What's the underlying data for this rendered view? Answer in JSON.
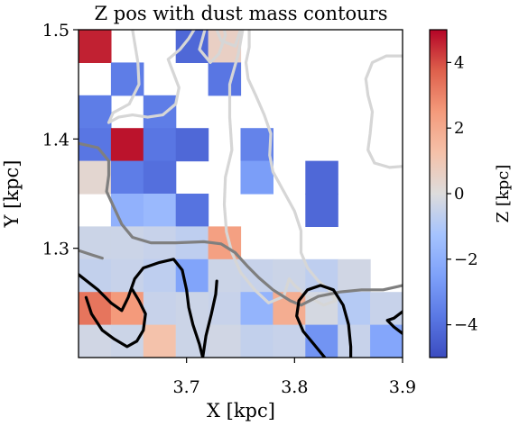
{
  "chart_data": {
    "type": "heatmap",
    "title": "Z pos with dust mass contours",
    "xlabel": "X [kpc]",
    "ylabel": "Y [kpc]",
    "colorbar_label": "Z [kpc]",
    "colormap": "coolwarm",
    "vmin": -5,
    "vmax": 5,
    "xlim": [
      3.6,
      3.9
    ],
    "ylim": [
      1.2,
      1.5
    ],
    "xticks": [
      3.7,
      3.8,
      3.9
    ],
    "xtick_labels": [
      "3.7",
      "3.8",
      "3.9"
    ],
    "yticks": [
      1.3,
      1.4,
      1.5
    ],
    "ytick_labels": [
      "1.3",
      "1.4",
      "1.5"
    ],
    "cbar_ticks": [
      4,
      2,
      0,
      -2,
      -4
    ],
    "cbar_tick_labels": [
      "4",
      "2",
      "0",
      "−2",
      "−4"
    ],
    "cell_size": 0.03,
    "x_start": 3.6,
    "y_start": 1.2,
    "grid_rows_top_to_bottom": [
      [
        4.6,
        null,
        null,
        -4.2,
        0.6,
        null,
        null,
        null,
        null,
        null
      ],
      [
        null,
        -3.6,
        null,
        null,
        -3.8,
        null,
        null,
        null,
        null,
        null
      ],
      [
        -3.6,
        null,
        -3.6,
        null,
        null,
        null,
        null,
        null,
        null,
        null
      ],
      [
        -3.8,
        4.8,
        -3.8,
        -4.2,
        null,
        -3.4,
        null,
        null,
        null,
        null
      ],
      [
        0.3,
        -3.6,
        -4.0,
        null,
        null,
        -2.6,
        null,
        -4.2,
        null,
        null
      ],
      [
        null,
        -1.9,
        -1.6,
        -3.9,
        null,
        null,
        null,
        -4.2,
        null,
        null
      ],
      [
        -0.4,
        -0.4,
        -0.5,
        -0.7,
        2.3,
        null,
        null,
        null,
        null,
        null
      ],
      [
        -0.6,
        -0.5,
        -0.7,
        -2.4,
        -0.4,
        -0.5,
        -0.4,
        -0.7,
        -0.3,
        null
      ],
      [
        3.3,
        2.5,
        -0.5,
        -0.4,
        -0.5,
        -1.8,
        1.9,
        -0.2,
        -0.9,
        -0.5
      ],
      [
        -0.3,
        -0.4,
        1.2,
        -0.4,
        -0.3,
        -0.6,
        -0.5,
        -2.9,
        -0.5,
        -2.3
      ]
    ],
    "contours": [
      {
        "color": "#d6d6d6",
        "points": [
          [
            3.717,
            1.5
          ],
          [
            3.712,
            1.482
          ],
          [
            3.722,
            1.47
          ],
          [
            3.73,
            1.478
          ],
          [
            3.736,
            1.495
          ],
          [
            3.735,
            1.5
          ]
        ]
      },
      {
        "color": "#d6d6d6",
        "points": [
          [
            3.728,
            1.5
          ],
          [
            3.732,
            1.49
          ],
          [
            3.745,
            1.485
          ],
          [
            3.75,
            1.5
          ]
        ]
      },
      {
        "color": "#d6d6d6",
        "points": [
          [
            3.65,
            1.5
          ],
          [
            3.655,
            1.47
          ],
          [
            3.656,
            1.45
          ],
          [
            3.647,
            1.432
          ],
          [
            3.632,
            1.424
          ],
          [
            3.628,
            1.415
          ],
          [
            3.637,
            1.42
          ],
          [
            3.65,
            1.422
          ],
          [
            3.664,
            1.42
          ],
          [
            3.678,
            1.422
          ],
          [
            3.69,
            1.432
          ],
          [
            3.693,
            1.447
          ],
          [
            3.688,
            1.46
          ],
          [
            3.683,
            1.473
          ],
          [
            3.694,
            1.482
          ],
          [
            3.702,
            1.492
          ],
          [
            3.707,
            1.5
          ]
        ]
      },
      {
        "color": "#d6d6d6",
        "points": [
          [
            3.758,
            1.5
          ],
          [
            3.758,
            1.484
          ],
          [
            3.755,
            1.47
          ],
          [
            3.757,
            1.455
          ],
          [
            3.764,
            1.44
          ],
          [
            3.772,
            1.422
          ],
          [
            3.778,
            1.405
          ],
          [
            3.777,
            1.385
          ],
          [
            3.78,
            1.37
          ],
          [
            3.79,
            1.352
          ],
          [
            3.8,
            1.334
          ],
          [
            3.806,
            1.316
          ],
          [
            3.806,
            1.296
          ],
          [
            3.812,
            1.282
          ],
          [
            3.822,
            1.27
          ],
          [
            3.832,
            1.262
          ],
          [
            3.838,
            1.252
          ],
          [
            3.827,
            1.248
          ],
          [
            3.812,
            1.256
          ],
          [
            3.8,
            1.266
          ],
          [
            3.795,
            1.272
          ],
          [
            3.79,
            1.256
          ],
          [
            3.776,
            1.25
          ],
          [
            3.763,
            1.262
          ],
          [
            3.75,
            1.278
          ],
          [
            3.742,
            1.296
          ],
          [
            3.737,
            1.315
          ],
          [
            3.735,
            1.34
          ],
          [
            3.736,
            1.365
          ],
          [
            3.742,
            1.39
          ],
          [
            3.74,
            1.42
          ],
          [
            3.74,
            1.45
          ],
          [
            3.748,
            1.478
          ],
          [
            3.752,
            1.5
          ]
        ]
      },
      {
        "color": "#d6d6d6",
        "points": [
          [
            3.9,
            1.476
          ],
          [
            3.885,
            1.476
          ],
          [
            3.872,
            1.47
          ],
          [
            3.866,
            1.455
          ],
          [
            3.868,
            1.44
          ],
          [
            3.872,
            1.425
          ],
          [
            3.87,
            1.405
          ],
          [
            3.868,
            1.39
          ],
          [
            3.874,
            1.378
          ],
          [
            3.888,
            1.374
          ],
          [
            3.9,
            1.375
          ]
        ]
      },
      {
        "color": "#7f7f7f",
        "points": [
          [
            3.6,
            1.396
          ],
          [
            3.618,
            1.392
          ],
          [
            3.628,
            1.38
          ],
          [
            3.628,
            1.367
          ],
          [
            3.626,
            1.352
          ],
          [
            3.633,
            1.337
          ],
          [
            3.64,
            1.322
          ],
          [
            3.65,
            1.31
          ],
          [
            3.667,
            1.305
          ],
          [
            3.69,
            1.305
          ],
          [
            3.716,
            1.306
          ],
          [
            3.732,
            1.304
          ],
          [
            3.745,
            1.296
          ],
          [
            3.756,
            1.284
          ],
          [
            3.767,
            1.273
          ],
          [
            3.78,
            1.262
          ],
          [
            3.796,
            1.252
          ],
          [
            3.806,
            1.248
          ],
          [
            3.822,
            1.256
          ],
          [
            3.842,
            1.26
          ],
          [
            3.862,
            1.262
          ],
          [
            3.882,
            1.262
          ],
          [
            3.896,
            1.265
          ],
          [
            3.9,
            1.266
          ]
        ]
      },
      {
        "color": "#7f7f7f",
        "points": [
          [
            3.6,
            1.298
          ],
          [
            3.612,
            1.294
          ],
          [
            3.622,
            1.291
          ]
        ]
      },
      {
        "color": "#000000",
        "points": [
          [
            3.6,
            1.276
          ],
          [
            3.618,
            1.262
          ],
          [
            3.63,
            1.25
          ],
          [
            3.64,
            1.243
          ],
          [
            3.646,
            1.255
          ],
          [
            3.652,
            1.272
          ],
          [
            3.66,
            1.282
          ],
          [
            3.675,
            1.287
          ],
          [
            3.688,
            1.29
          ],
          [
            3.696,
            1.28
          ],
          [
            3.7,
            1.262
          ],
          [
            3.702,
            1.246
          ],
          [
            3.706,
            1.23
          ],
          [
            3.712,
            1.212
          ],
          [
            3.715,
            1.2
          ]
        ]
      },
      {
        "color": "#000000",
        "points": [
          [
            3.607,
            1.255
          ],
          [
            3.612,
            1.24
          ],
          [
            3.622,
            1.225
          ],
          [
            3.633,
            1.217
          ],
          [
            3.645,
            1.21
          ],
          [
            3.654,
            1.215
          ],
          [
            3.66,
            1.225
          ],
          [
            3.662,
            1.24
          ],
          [
            3.656,
            1.252
          ],
          [
            3.65,
            1.262
          ]
        ]
      },
      {
        "color": "#000000",
        "points": [
          [
            3.715,
            1.2
          ],
          [
            3.718,
            1.22
          ],
          [
            3.723,
            1.24
          ],
          [
            3.727,
            1.258
          ],
          [
            3.728,
            1.27
          ]
        ]
      },
      {
        "color": "#000000",
        "points": [
          [
            3.828,
            1.2
          ],
          [
            3.818,
            1.212
          ],
          [
            3.808,
            1.224
          ],
          [
            3.802,
            1.238
          ],
          [
            3.804,
            1.252
          ],
          [
            3.812,
            1.262
          ],
          [
            3.824,
            1.266
          ],
          [
            3.836,
            1.262
          ],
          [
            3.845,
            1.248
          ],
          [
            3.85,
            1.23
          ],
          [
            3.852,
            1.21
          ],
          [
            3.852,
            1.2
          ]
        ]
      },
      {
        "color": "#000000",
        "points": [
          [
            3.9,
            1.242
          ],
          [
            3.892,
            1.236
          ],
          [
            3.886,
            1.234
          ],
          [
            3.892,
            1.228
          ],
          [
            3.9,
            1.222
          ]
        ]
      }
    ]
  }
}
